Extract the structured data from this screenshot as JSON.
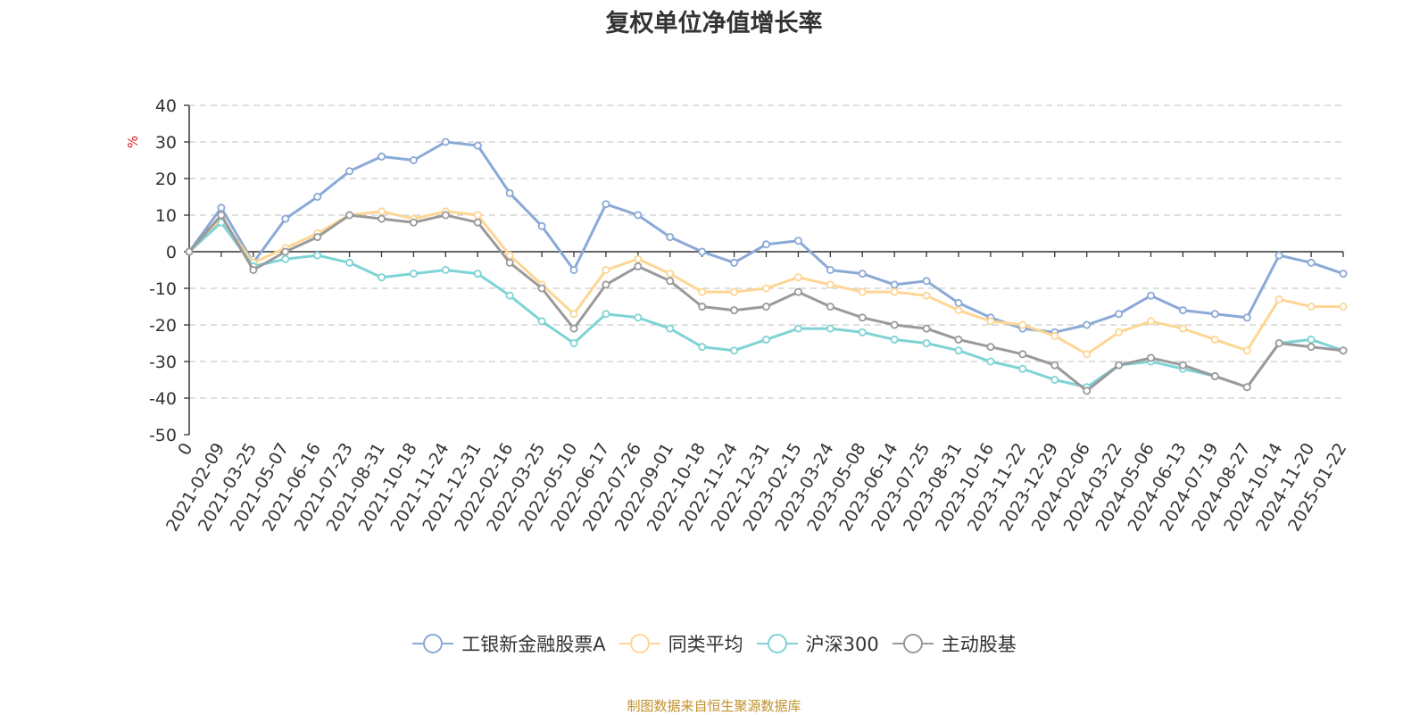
{
  "title": "复权单位净值增长率",
  "source": "制图数据来自恒生聚源数据库",
  "chart_data": {
    "type": "line",
    "ylabel": "%",
    "ylim": [
      -50,
      40
    ],
    "yticks": [
      40,
      30,
      20,
      10,
      0,
      -10,
      -20,
      -30,
      -40,
      -50
    ],
    "grid": true,
    "legend_position": "bottom",
    "categories": [
      "0",
      "2021-02-09",
      "2021-03-25",
      "2021-05-07",
      "2021-06-16",
      "2021-07-23",
      "2021-08-31",
      "2021-10-18",
      "2021-11-24",
      "2021-12-31",
      "2022-02-16",
      "2022-03-25",
      "2022-05-10",
      "2022-06-17",
      "2022-07-26",
      "2022-09-01",
      "2022-10-18",
      "2022-11-24",
      "2022-12-31",
      "2023-02-15",
      "2023-03-24",
      "2023-05-08",
      "2023-06-14",
      "2023-07-25",
      "2023-08-31",
      "2023-10-16",
      "2023-11-22",
      "2023-12-29",
      "2024-02-06",
      "2024-03-22",
      "2024-05-06",
      "2024-06-13",
      "2024-07-19",
      "2024-08-27",
      "2024-10-14",
      "2024-11-20",
      "2025-01-22"
    ],
    "series": [
      {
        "name": "工银新金融股票A",
        "color": "#8aa9d6",
        "values": [
          0,
          12,
          -3,
          9,
          15,
          22,
          26,
          25,
          30,
          29,
          16,
          7,
          -5,
          13,
          10,
          4,
          0,
          -3,
          2,
          3,
          -5,
          -6,
          -9,
          -8,
          -14,
          -18,
          -21,
          -22,
          -20,
          -17,
          -12,
          -16,
          -17,
          -18,
          -1,
          -3,
          -6
        ]
      },
      {
        "name": "同类平均",
        "color": "#fdd694",
        "values": [
          0,
          9,
          -3,
          1,
          5,
          10,
          11,
          9,
          11,
          10,
          -1,
          -9,
          -17,
          -5,
          -2,
          -6,
          -11,
          -11,
          -10,
          -7,
          -9,
          -11,
          -11,
          -12,
          -16,
          -19,
          -20,
          -23,
          -28,
          -22,
          -19,
          -21,
          -24,
          -27,
          -13,
          -15,
          -15
        ]
      },
      {
        "name": "沪深300",
        "color": "#7fd3d4",
        "values": [
          0,
          8,
          -4,
          -2,
          -1,
          -3,
          -7,
          -6,
          -5,
          -6,
          -12,
          -19,
          -25,
          -17,
          -18,
          -21,
          -26,
          -27,
          -24,
          -21,
          -21,
          -22,
          -24,
          -25,
          -27,
          -30,
          -32,
          -35,
          -37,
          -31,
          -30,
          -32,
          -34,
          -37,
          -25,
          -24,
          -27
        ]
      },
      {
        "name": "主动股基",
        "color": "#9a9a9a",
        "values": [
          0,
          10,
          -5,
          0,
          4,
          10,
          9,
          8,
          10,
          8,
          -3,
          -10,
          -21,
          -9,
          -4,
          -8,
          -15,
          -16,
          -15,
          -11,
          -15,
          -18,
          -20,
          -21,
          -24,
          -26,
          -28,
          -31,
          -38,
          -31,
          -29,
          -31,
          -34,
          -37,
          -25,
          -26,
          -27
        ]
      }
    ]
  }
}
